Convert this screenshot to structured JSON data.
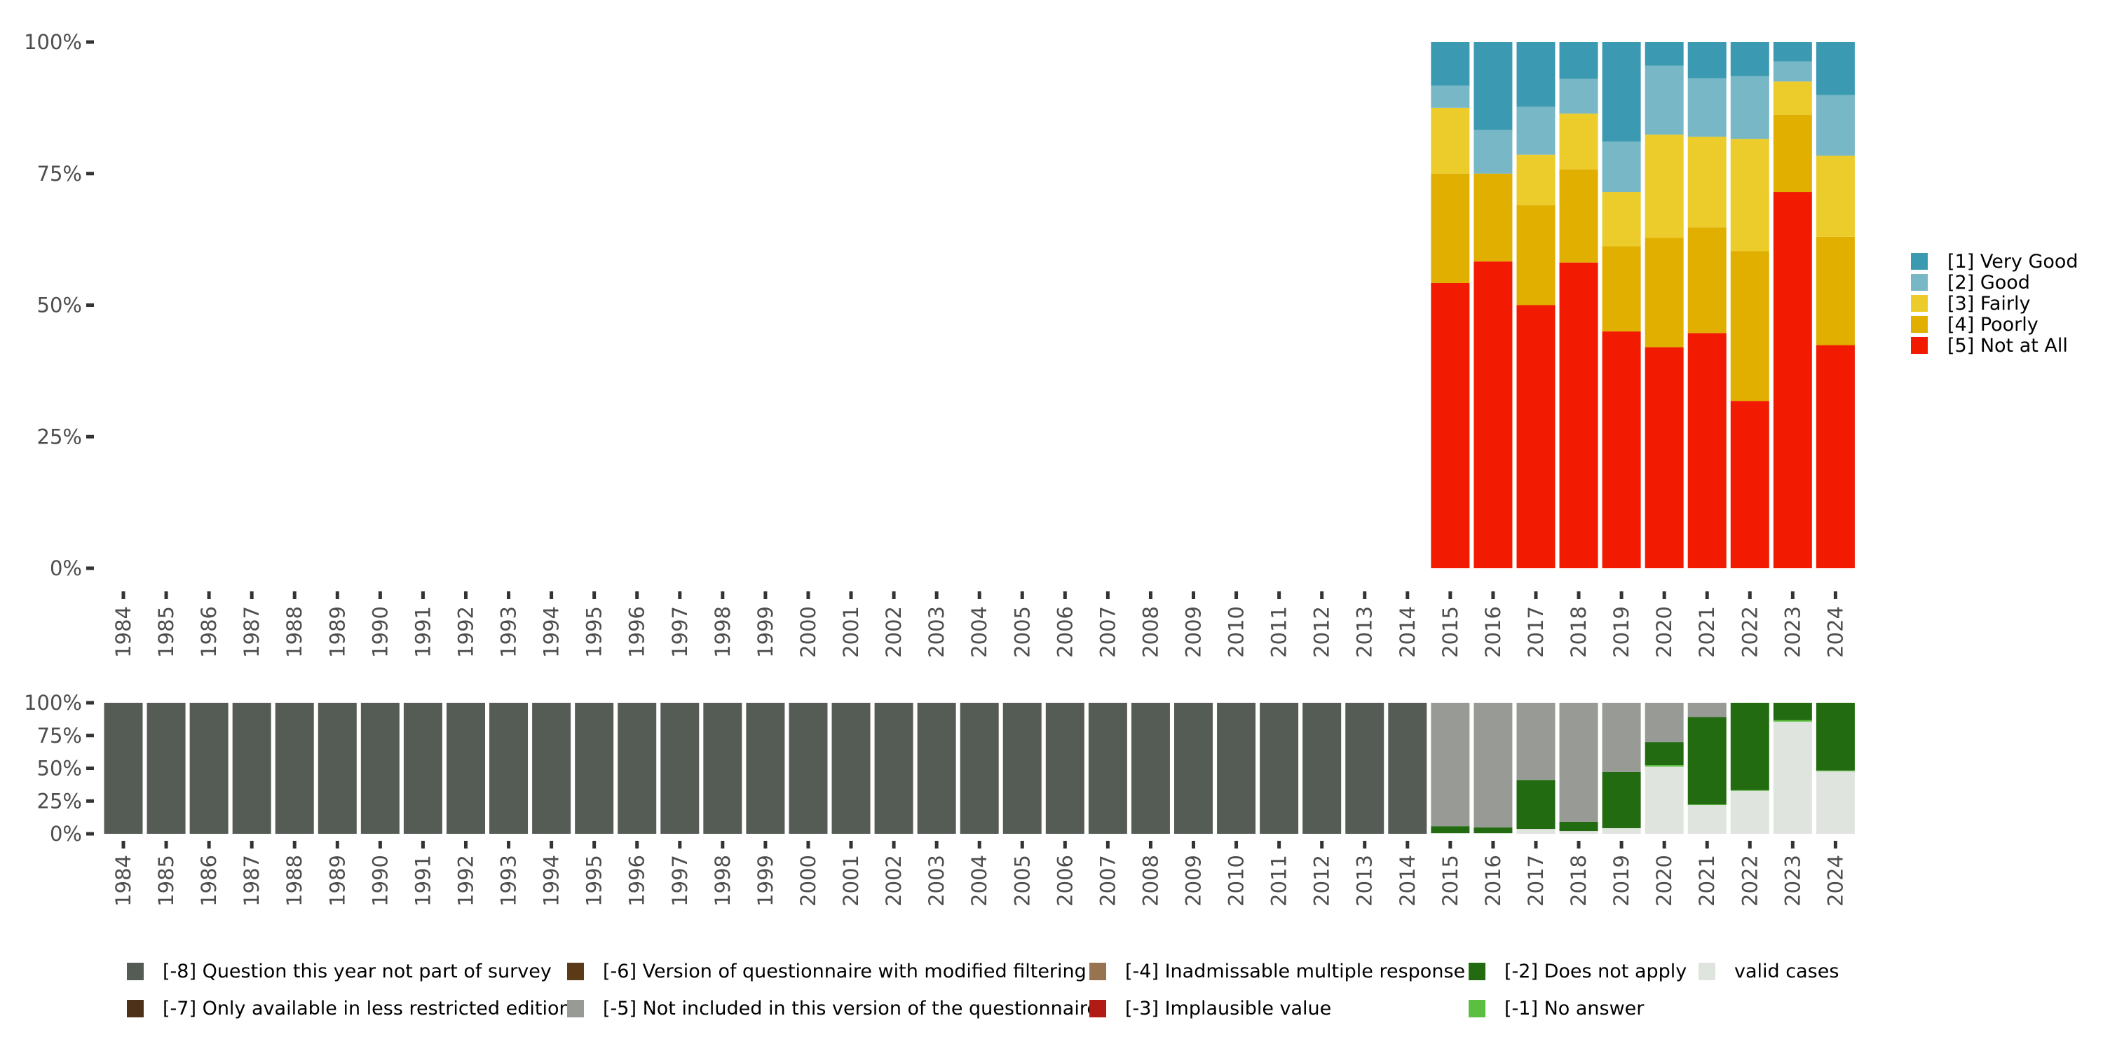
{
  "chart_data": [
    {
      "type": "bar",
      "stacked": true,
      "name": "valid-responses",
      "title": "",
      "xlabel": "",
      "ylabel": "",
      "ylim": [
        0,
        100
      ],
      "yticks": [
        "0%",
        "25%",
        "50%",
        "75%",
        "100%"
      ],
      "ytick_values": [
        0,
        25,
        50,
        75,
        100
      ],
      "grid": false,
      "legend_position": "right",
      "categories": [
        "1984",
        "1985",
        "1986",
        "1987",
        "1988",
        "1989",
        "1990",
        "1991",
        "1992",
        "1993",
        "1994",
        "1995",
        "1996",
        "1997",
        "1998",
        "1999",
        "2000",
        "2001",
        "2002",
        "2003",
        "2004",
        "2005",
        "2006",
        "2007",
        "2008",
        "2009",
        "2010",
        "2011",
        "2012",
        "2013",
        "2014",
        "2015",
        "2016",
        "2017",
        "2018",
        "2019",
        "2020",
        "2021",
        "2022",
        "2023",
        "2024"
      ],
      "series": [
        {
          "name": "[5] Not at All",
          "color": "#f21a00",
          "values": [
            null,
            null,
            null,
            null,
            null,
            null,
            null,
            null,
            null,
            null,
            null,
            null,
            null,
            null,
            null,
            null,
            null,
            null,
            null,
            null,
            null,
            null,
            null,
            null,
            null,
            null,
            null,
            null,
            null,
            null,
            null,
            54.2,
            58.3,
            50.0,
            58.1,
            45.0,
            42.0,
            44.7,
            31.8,
            71.5,
            42.4
          ]
        },
        {
          "name": "[4] Poorly",
          "color": "#e1af00",
          "values": [
            null,
            null,
            null,
            null,
            null,
            null,
            null,
            null,
            null,
            null,
            null,
            null,
            null,
            null,
            null,
            null,
            null,
            null,
            null,
            null,
            null,
            null,
            null,
            null,
            null,
            null,
            null,
            null,
            null,
            null,
            null,
            20.8,
            16.7,
            19.0,
            17.7,
            16.2,
            20.8,
            20.1,
            28.5,
            14.7,
            20.6
          ]
        },
        {
          "name": "[3] Fairly",
          "color": "#ebcc2a",
          "values": [
            null,
            null,
            null,
            null,
            null,
            null,
            null,
            null,
            null,
            null,
            null,
            null,
            null,
            null,
            null,
            null,
            null,
            null,
            null,
            null,
            null,
            null,
            null,
            null,
            null,
            null,
            null,
            null,
            null,
            null,
            null,
            12.5,
            0.0,
            9.6,
            10.6,
            10.3,
            19.6,
            17.2,
            21.3,
            6.3,
            15.4
          ]
        },
        {
          "name": "[2] Good",
          "color": "#78b7c5",
          "values": [
            null,
            null,
            null,
            null,
            null,
            null,
            null,
            null,
            null,
            null,
            null,
            null,
            null,
            null,
            null,
            null,
            null,
            null,
            null,
            null,
            null,
            null,
            null,
            null,
            null,
            null,
            null,
            null,
            null,
            null,
            null,
            4.2,
            8.3,
            9.1,
            6.6,
            9.6,
            13.1,
            11.1,
            11.9,
            3.8,
            11.5
          ]
        },
        {
          "name": "[1] Very Good",
          "color": "#3b9ab2",
          "values": [
            null,
            null,
            null,
            null,
            null,
            null,
            null,
            null,
            null,
            null,
            null,
            null,
            null,
            null,
            null,
            null,
            null,
            null,
            null,
            null,
            null,
            null,
            null,
            null,
            null,
            null,
            null,
            null,
            null,
            null,
            null,
            8.3,
            16.7,
            12.3,
            7.0,
            18.9,
            4.5,
            6.9,
            6.5,
            3.7,
            10.1
          ]
        }
      ]
    },
    {
      "type": "bar",
      "stacked": true,
      "name": "missing-values",
      "title": "",
      "xlabel": "",
      "ylabel": "",
      "ylim": [
        0,
        100
      ],
      "yticks": [
        "0%",
        "25%",
        "50%",
        "75%",
        "100%"
      ],
      "ytick_values": [
        0,
        25,
        50,
        75,
        100
      ],
      "grid": false,
      "legend_position": "bottom",
      "categories": [
        "1984",
        "1985",
        "1986",
        "1987",
        "1988",
        "1989",
        "1990",
        "1991",
        "1992",
        "1993",
        "1994",
        "1995",
        "1996",
        "1997",
        "1998",
        "1999",
        "2000",
        "2001",
        "2002",
        "2003",
        "2004",
        "2005",
        "2006",
        "2007",
        "2008",
        "2009",
        "2010",
        "2011",
        "2012",
        "2013",
        "2014",
        "2015",
        "2016",
        "2017",
        "2018",
        "2019",
        "2020",
        "2021",
        "2022",
        "2023",
        "2024"
      ],
      "series": [
        {
          "name": "valid cases",
          "color": "#e0e4df",
          "values": [
            0,
            0,
            0,
            0,
            0,
            0,
            0,
            0,
            0,
            0,
            0,
            0,
            0,
            0,
            0,
            0,
            0,
            0,
            0,
            0,
            0,
            0,
            0,
            0,
            0,
            0,
            0,
            0,
            0,
            0,
            0,
            0.5,
            0.5,
            3.7,
            2.1,
            4.3,
            51.3,
            21.9,
            32.8,
            85.6,
            47.8
          ]
        },
        {
          "name": "[-1] No answer",
          "color": "#5bbf3f",
          "values": [
            0,
            0,
            0,
            0,
            0,
            0,
            0,
            0,
            0,
            0,
            0,
            0,
            0,
            0,
            0,
            0,
            0,
            0,
            0,
            0,
            0,
            0,
            0,
            0,
            0,
            0,
            0,
            0,
            0,
            0,
            0,
            0,
            0,
            0,
            0,
            0,
            1.1,
            0.5,
            0.5,
            1.1,
            0.5
          ]
        },
        {
          "name": "[-2] Does not apply",
          "color": "#226b10",
          "values": [
            0,
            0,
            0,
            0,
            0,
            0,
            0,
            0,
            0,
            0,
            0,
            0,
            0,
            0,
            0,
            0,
            0,
            0,
            0,
            0,
            0,
            0,
            0,
            0,
            0,
            0,
            0,
            0,
            0,
            0,
            0,
            5.3,
            4.3,
            37.4,
            7.0,
            42.8,
            17.6,
            66.8,
            66.7,
            13.3,
            51.7
          ]
        },
        {
          "name": "[-3] Implausible value",
          "color": "#b01c15",
          "values": [
            0,
            0,
            0,
            0,
            0,
            0,
            0,
            0,
            0,
            0,
            0,
            0,
            0,
            0,
            0,
            0,
            0,
            0,
            0,
            0,
            0,
            0,
            0,
            0,
            0,
            0,
            0,
            0,
            0,
            0,
            0,
            0,
            0,
            0,
            0,
            0,
            0,
            0,
            0,
            0,
            0
          ]
        },
        {
          "name": "[-4] Inadmissable multiple response",
          "color": "#977350",
          "values": [
            0,
            0,
            0,
            0,
            0,
            0,
            0,
            0,
            0,
            0,
            0,
            0,
            0,
            0,
            0,
            0,
            0,
            0,
            0,
            0,
            0,
            0,
            0,
            0,
            0,
            0,
            0,
            0,
            0,
            0,
            0,
            0,
            0,
            0,
            0,
            0,
            0,
            0,
            0,
            0,
            0
          ]
        },
        {
          "name": "[-5] Not included in this version of the questionnaire",
          "color": "#989b95",
          "values": [
            0,
            0,
            0,
            0,
            0,
            0,
            0,
            0,
            0,
            0,
            0,
            0,
            0,
            0,
            0,
            0,
            0,
            0,
            0,
            0,
            0,
            0,
            0,
            0,
            0,
            0,
            0,
            0,
            0,
            0,
            0,
            94.2,
            95.2,
            58.9,
            90.9,
            52.9,
            30.0,
            10.8,
            0,
            0,
            0
          ]
        },
        {
          "name": "[-6] Version of questionnaire with modified filtering",
          "color": "#5a3a17",
          "values": [
            0,
            0,
            0,
            0,
            0,
            0,
            0,
            0,
            0,
            0,
            0,
            0,
            0,
            0,
            0,
            0,
            0,
            0,
            0,
            0,
            0,
            0,
            0,
            0,
            0,
            0,
            0,
            0,
            0,
            0,
            0,
            0,
            0,
            0,
            0,
            0,
            0,
            0,
            0,
            0,
            0
          ]
        },
        {
          "name": "[-7] Only available in less restricted edition",
          "color": "#4e3119",
          "values": [
            0,
            0,
            0,
            0,
            0,
            0,
            0,
            0,
            0,
            0,
            0,
            0,
            0,
            0,
            0,
            0,
            0,
            0,
            0,
            0,
            0,
            0,
            0,
            0,
            0,
            0,
            0,
            0,
            0,
            0,
            0,
            0,
            0,
            0,
            0,
            0,
            0,
            0,
            0,
            0,
            0
          ]
        },
        {
          "name": "[-8] Question this year not part of survey",
          "color": "#555b55",
          "values": [
            100,
            100,
            100,
            100,
            100,
            100,
            100,
            100,
            100,
            100,
            100,
            100,
            100,
            100,
            100,
            100,
            100,
            100,
            100,
            100,
            100,
            100,
            100,
            100,
            100,
            100,
            100,
            100,
            100,
            100,
            100,
            0,
            0,
            0,
            0,
            0,
            0,
            0,
            0,
            0,
            0
          ]
        }
      ]
    }
  ],
  "legend_right": {
    "items": [
      {
        "label": "[1] Very Good",
        "color": "#3b9ab2"
      },
      {
        "label": "[2] Good",
        "color": "#78b7c5"
      },
      {
        "label": "[3] Fairly",
        "color": "#ebcc2a"
      },
      {
        "label": "[4] Poorly",
        "color": "#e1af00"
      },
      {
        "label": "[5] Not at All",
        "color": "#f21a00"
      }
    ]
  },
  "legend_bottom": {
    "items": [
      {
        "label": "[-8] Question this year not part of survey",
        "color": "#555b55"
      },
      {
        "label": "[-7] Only available in less restricted edition",
        "color": "#4e3119"
      },
      {
        "label": "[-6] Version of questionnaire with modified filtering",
        "color": "#5a3a17"
      },
      {
        "label": "[-5] Not included in this version of the questionnaire",
        "color": "#989b95"
      },
      {
        "label": "[-4] Inadmissable multiple response",
        "color": "#977350"
      },
      {
        "label": "[-3] Implausible value",
        "color": "#b01c15"
      },
      {
        "label": "[-2] Does not apply",
        "color": "#226b10"
      },
      {
        "label": "[-1] No answer",
        "color": "#5bbf3f"
      },
      {
        "label": "valid cases",
        "color": "#e0e4df"
      }
    ]
  }
}
